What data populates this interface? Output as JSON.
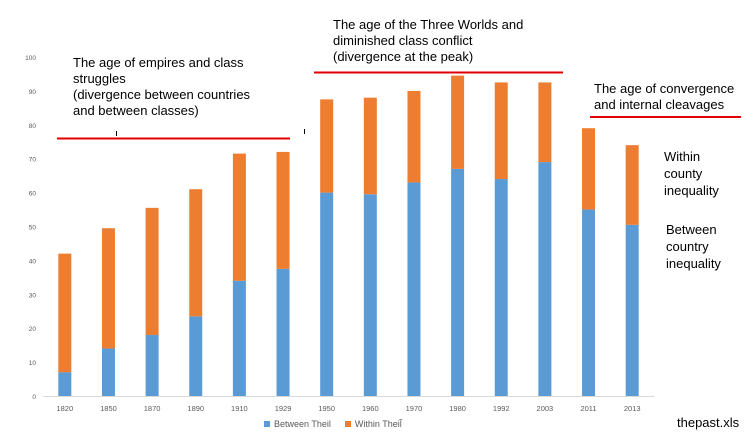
{
  "chart_data": {
    "type": "bar",
    "stacked": true,
    "categories": [
      "1820",
      "1850",
      "1870",
      "1890",
      "1910",
      "1929",
      "1950",
      "1960",
      "1970",
      "1980",
      "1992",
      "2003",
      "2011",
      "2013"
    ],
    "series": [
      {
        "name": "Between Theil",
        "color": "#5B9BD5",
        "values": [
          7,
          14,
          18,
          23.5,
          34,
          37.5,
          60,
          59.5,
          63,
          67,
          64,
          69,
          55,
          50.5
        ]
      },
      {
        "name": "Within Theil̃",
        "color": "#ED7D31",
        "values": [
          35,
          35.5,
          37.5,
          37.5,
          37.5,
          34.5,
          27.5,
          28.5,
          27,
          27.5,
          28.5,
          23.5,
          24,
          23.5
        ]
      }
    ],
    "ylim": [
      0,
      100
    ],
    "yticks": [
      "0",
      "10",
      "20",
      "30",
      "40",
      "50",
      "60",
      "70",
      "80",
      "90",
      "100"
    ],
    "legend_position": "bottom"
  },
  "annotations": {
    "empires": [
      "The age of empires and class",
      "struggles",
      "(divergence between countries",
      "and between classes)"
    ],
    "three_worlds": [
      "The age of the Three Worlds  and",
      "diminished class conflict",
      "(divergence at the peak)"
    ],
    "convergence": [
      "The age of convergence",
      "and internal cleavages"
    ],
    "within_label": [
      "Within",
      "county",
      "inequality"
    ],
    "between_label": [
      "Between",
      "country",
      "inequality"
    ]
  },
  "source": "thepast.xls",
  "colors": {
    "line": "#E00000",
    "axis": "#D9D9D9",
    "tick_text": "#595959"
  }
}
